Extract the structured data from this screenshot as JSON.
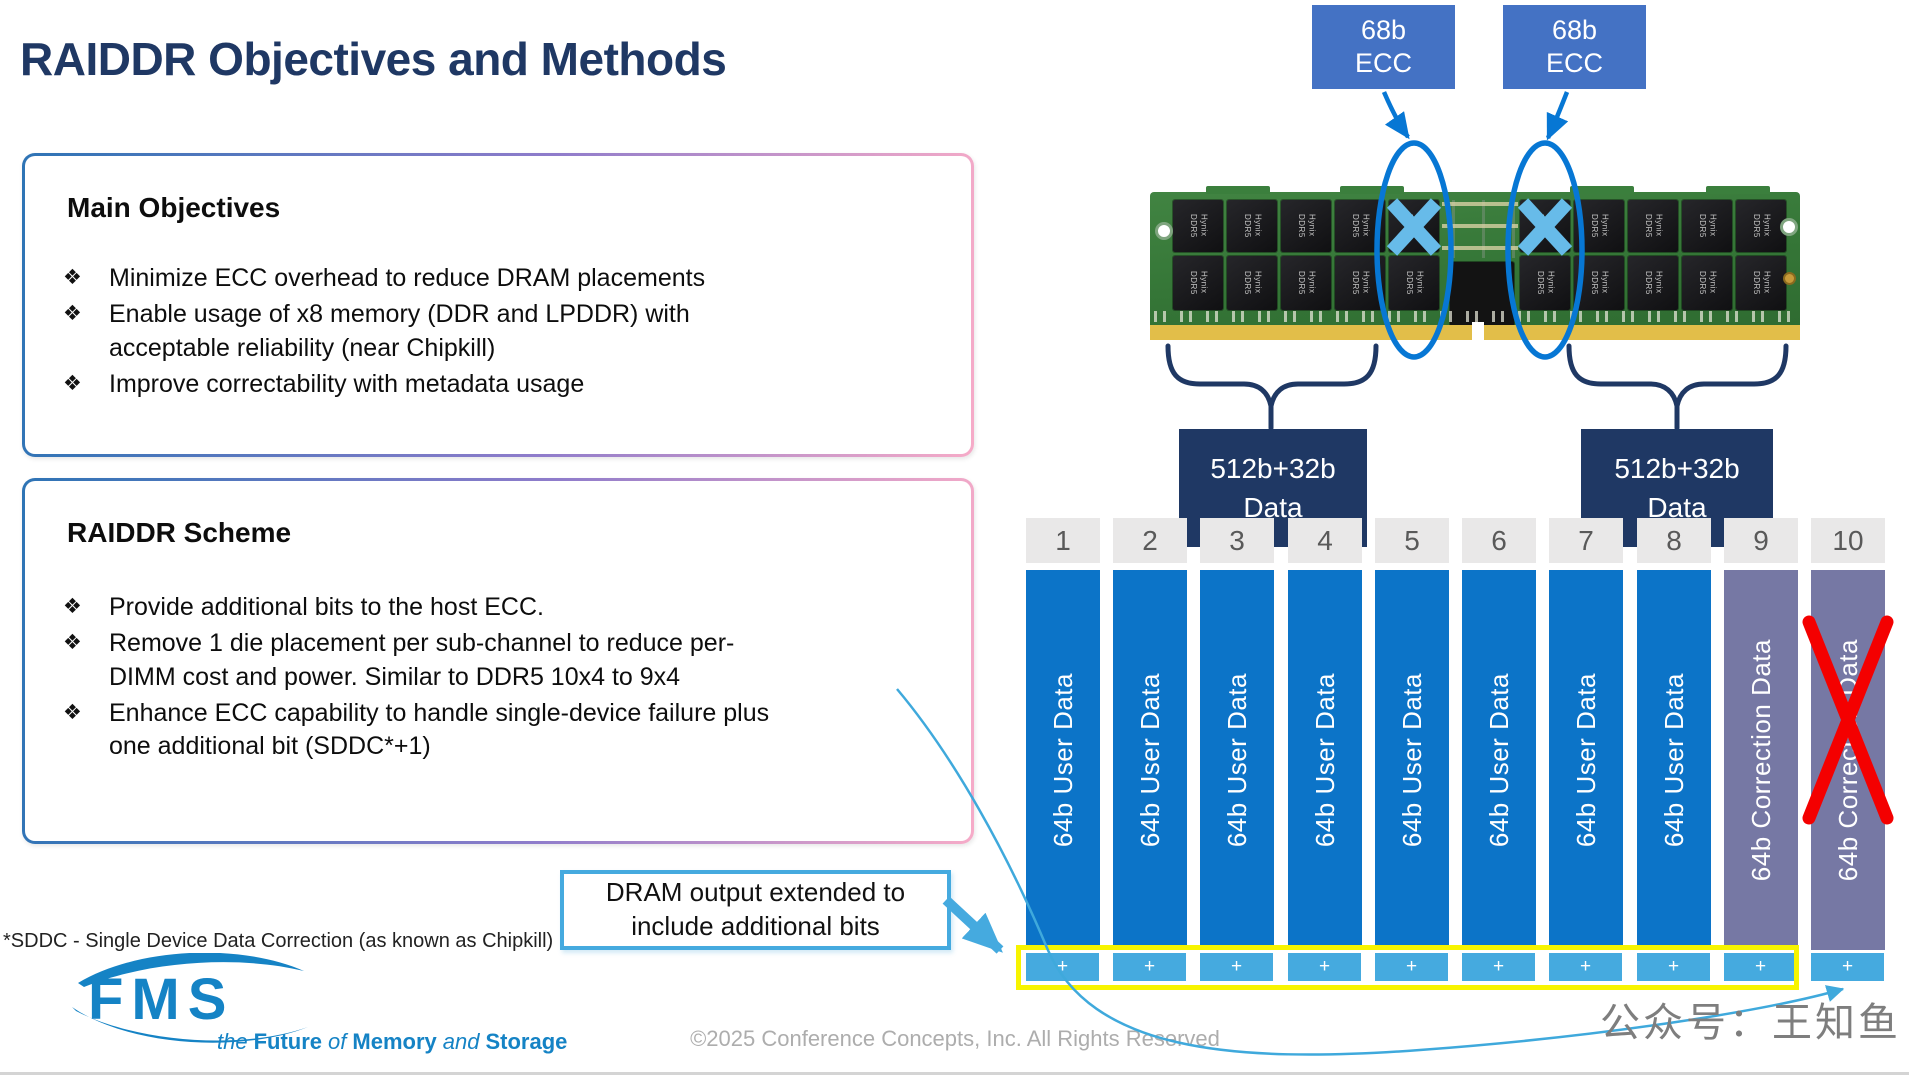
{
  "slide": {
    "title": "RAIDDR Objectives and Methods",
    "footnote": "*SDDC - Single Device Data Correction (as known as Chipkill)",
    "copyright": "©2025 Conference Concepts, Inc. All Rights Reserved",
    "watermark": "公众号：王知鱼"
  },
  "logo": {
    "acronym": "FMS",
    "tagline": {
      "t1": "the",
      "t2": "Future",
      "t3": "of",
      "t4": "Memory",
      "t5": "and",
      "t6": "Storage"
    }
  },
  "main_objectives": {
    "heading": "Main Objectives",
    "bullets": [
      "Minimize ECC overhead to reduce DRAM placements",
      "Enable usage of x8 memory (DDR and LPDDR) with\nacceptable reliability (near Chipkill)",
      "Improve correctability with metadata usage"
    ]
  },
  "raiddr_scheme": {
    "heading": "RAIDDR Scheme",
    "bullets": [
      "Provide additional bits to the host ECC.",
      "Remove 1 die placement per sub-channel  to reduce per-\nDIMM cost and power. Similar to DDR5 10x4 to 9x4",
      "Enhance ECC capability to handle single-device failure plus\none additional bit (SDDC*+1)"
    ]
  },
  "dimm": {
    "ecc_labels": [
      "68b\nECC",
      "68b\nECC"
    ],
    "data_labels": [
      "512b+32b\nData",
      "512b+32b\nData"
    ],
    "chip_label": "Hynix\nDDR5"
  },
  "callout": {
    "text": "DRAM output extended to\ninclude additional bits"
  },
  "channel_diagram": {
    "headers": [
      "1",
      "2",
      "3",
      "4",
      "5",
      "6",
      "7",
      "8",
      "9",
      "10"
    ],
    "columns": [
      {
        "label": "64b User Data",
        "type": "user"
      },
      {
        "label": "64b User Data",
        "type": "user"
      },
      {
        "label": "64b User Data",
        "type": "user"
      },
      {
        "label": "64b User Data",
        "type": "user"
      },
      {
        "label": "64b User Data",
        "type": "user"
      },
      {
        "label": "64b User Data",
        "type": "user"
      },
      {
        "label": "64b User Data",
        "type": "user"
      },
      {
        "label": "64b User Data",
        "type": "user"
      },
      {
        "label": "64b Correction Data",
        "type": "correction"
      },
      {
        "label": "64b Correction Data",
        "type": "correction",
        "removed": true
      }
    ],
    "plus_symbol": "+"
  },
  "colors": {
    "title_navy": "#1F3864",
    "ecc_box_blue": "#4472C4",
    "data_box_navy": "#1F3864",
    "user_data_blue": "#0C74C8",
    "correction_purple": "#7678A4",
    "plus_blue": "#45AADF",
    "highlight_yellow": "#F7F400",
    "removed_red": "#F40000",
    "callout_border_blue": "#45AADF",
    "logo_blue": "#1583C5"
  }
}
